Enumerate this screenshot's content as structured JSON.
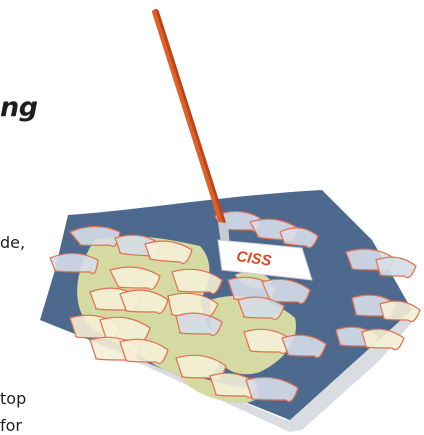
{
  "text_fragments": {
    "title_tail": "ng",
    "line_a": "de,",
    "line_b": "top",
    "line_c": "for"
  },
  "illustration": {
    "subject": "map-sheet-with-pointer",
    "stamp_label": "CISS",
    "colors": {
      "ocean": "#4d6a8e",
      "land": "#d5d9a2",
      "land_shadow": "#c3c98e",
      "page_curl": "#d9dde2",
      "pointer": "#e0602a",
      "pointer_dark": "#b9461b",
      "tag_fill": "#ffffff",
      "stamp_text": "#e0461e",
      "polygon_stroke": "#e07050",
      "polygon_blue": "#d6dde8",
      "polygon_cream": "#f5f0d6"
    },
    "icons": [
      "map-icon",
      "pointer-stick-icon",
      "label-tag-icon"
    ]
  }
}
